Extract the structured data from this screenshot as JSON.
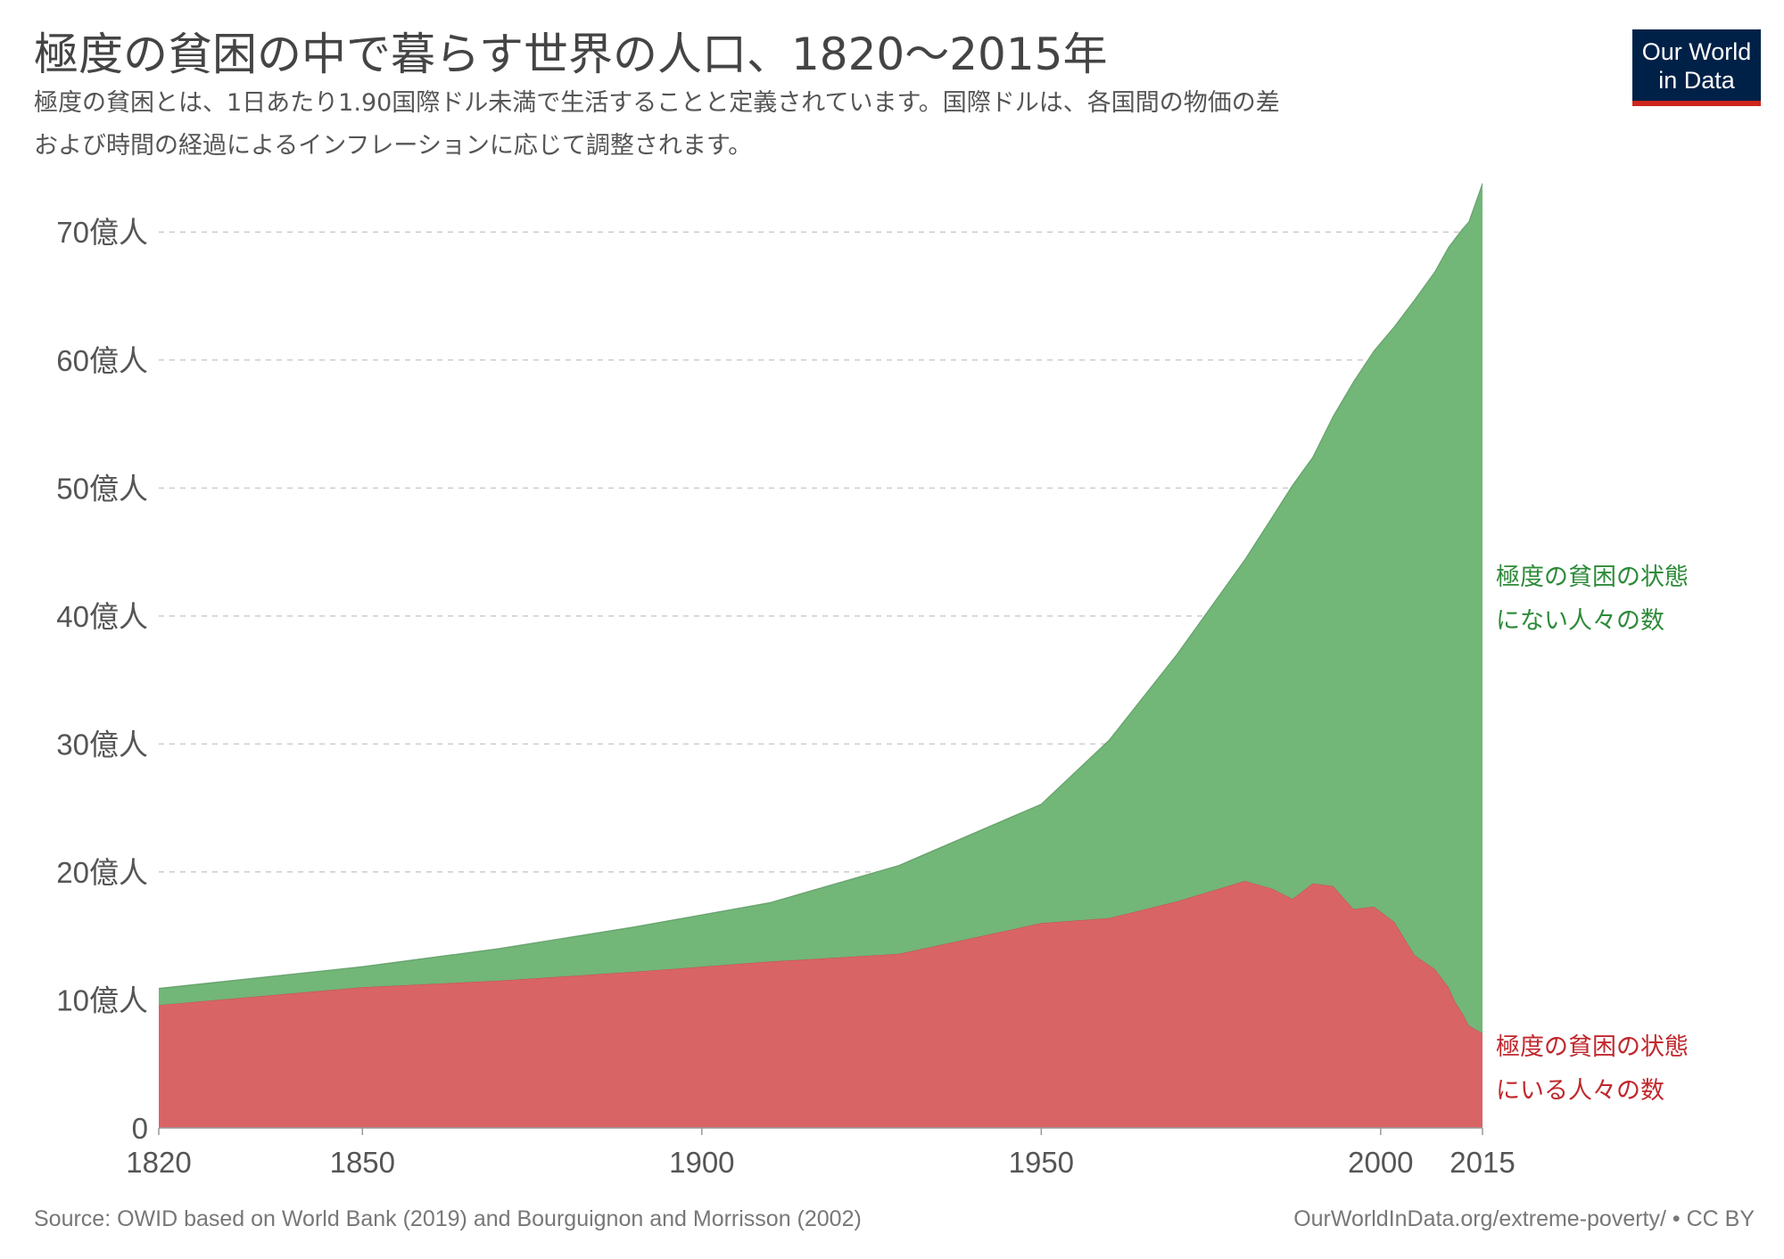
{
  "header": {
    "title": "極度の貧困の中で暮らす世界の人口、1820～2015年",
    "subtitle_line1": "極度の貧困とは、1日あたり1.90国際ドル未満で生活することと定義されています。国際ドルは、各国間の物価の差",
    "subtitle_line2": "および時間の経過によるインフレーションに応じて調整されます。"
  },
  "logo": {
    "line1": "Our World",
    "line2": "in Data",
    "bg_color": "#002147",
    "accent_color": "#ce261e"
  },
  "footer": {
    "source": "Source: OWID based on World Bank (2019) and Bourguignon and Morrisson (2002)",
    "url": "OurWorldInData.org/extreme-poverty/ • CC BY"
  },
  "chart_data": {
    "type": "area",
    "stacked": true,
    "y_tick_labels": [
      "0",
      "10億人",
      "20億人",
      "30億人",
      "40億人",
      "50億人",
      "60億人",
      "70億人"
    ],
    "y_tick_values": [
      0,
      1,
      2,
      3,
      4,
      5,
      6,
      7
    ],
    "y_unit": "billion people",
    "ylim": [
      0,
      7.35
    ],
    "xlim": [
      1820,
      2015
    ],
    "x_ticks": [
      1820,
      1850,
      1900,
      1950,
      2000,
      2015
    ],
    "grid": {
      "horizontal": true,
      "style": "dashed"
    },
    "series": [
      {
        "name": "極度の貧困の状態\nにいる人々の数",
        "label_line1": "極度の貧困の状態",
        "label_line2": "にいる人々の数",
        "color": "#d96466",
        "label_color": "#c0282d",
        "points": [
          [
            1820,
            0.96
          ],
          [
            1850,
            1.1
          ],
          [
            1870,
            1.15
          ],
          [
            1890,
            1.22
          ],
          [
            1910,
            1.3
          ],
          [
            1929,
            1.36
          ],
          [
            1950,
            1.6
          ],
          [
            1960,
            1.64
          ],
          [
            1970,
            1.77
          ],
          [
            1980,
            1.93
          ],
          [
            1984,
            1.87
          ],
          [
            1987,
            1.79
          ],
          [
            1990,
            1.91
          ],
          [
            1993,
            1.89
          ],
          [
            1996,
            1.71
          ],
          [
            1999,
            1.73
          ],
          [
            2002,
            1.61
          ],
          [
            2005,
            1.35
          ],
          [
            2008,
            1.24
          ],
          [
            2010,
            1.1
          ],
          [
            2011,
            0.98
          ],
          [
            2012,
            0.9
          ],
          [
            2013,
            0.8
          ],
          [
            2015,
            0.74
          ]
        ]
      },
      {
        "name": "極度の貧困の状態\nにない人々の数",
        "label_line1": "極度の貧困の状態",
        "label_line2": "にない人々の数",
        "color": "#72b678",
        "label_color": "#2e8b3a",
        "points": [
          [
            1820,
            0.13
          ],
          [
            1850,
            0.16
          ],
          [
            1870,
            0.25
          ],
          [
            1890,
            0.35
          ],
          [
            1910,
            0.46
          ],
          [
            1929,
            0.69
          ],
          [
            1950,
            0.93
          ],
          [
            1960,
            1.39
          ],
          [
            1970,
            1.93
          ],
          [
            1980,
            2.51
          ],
          [
            1984,
            2.9
          ],
          [
            1987,
            3.23
          ],
          [
            1990,
            3.33
          ],
          [
            1993,
            3.67
          ],
          [
            1996,
            4.12
          ],
          [
            1999,
            4.34
          ],
          [
            2002,
            4.65
          ],
          [
            2005,
            5.12
          ],
          [
            2008,
            5.45
          ],
          [
            2010,
            5.78
          ],
          [
            2011,
            5.97
          ],
          [
            2012,
            6.12
          ],
          [
            2013,
            6.28
          ],
          [
            2015,
            6.64
          ]
        ]
      }
    ]
  }
}
